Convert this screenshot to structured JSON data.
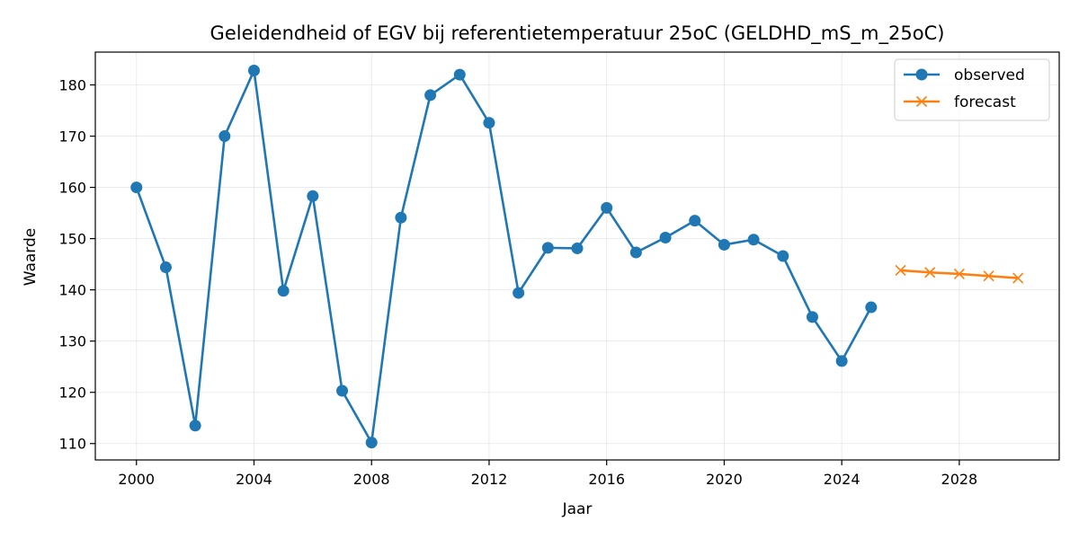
{
  "chart_data": {
    "type": "line",
    "title": "Geleidendheid of EGV bij referentietemperatuur 25oC (GELDHD_mS_m_25oC)",
    "xlabel": "Jaar",
    "ylabel": "Waarde",
    "xlim": [
      1998.6,
      2031.4
    ],
    "ylim": [
      106.8,
      186.4
    ],
    "xticks": [
      2000,
      2004,
      2008,
      2012,
      2016,
      2020,
      2024,
      2028
    ],
    "yticks": [
      110,
      120,
      130,
      140,
      150,
      160,
      170,
      180
    ],
    "grid": true,
    "legend_position": "top-right",
    "series": [
      {
        "name": "observed",
        "color": "#1f77b4",
        "marker": "circle",
        "x": [
          2000,
          2001,
          2002,
          2003,
          2004,
          2005,
          2006,
          2007,
          2008,
          2009,
          2010,
          2011,
          2012,
          2013,
          2014,
          2015,
          2016,
          2017,
          2018,
          2019,
          2020,
          2021,
          2022,
          2023,
          2024,
          2025
        ],
        "values": [
          160.0,
          144.4,
          113.5,
          170.0,
          182.8,
          139.8,
          158.3,
          120.3,
          110.2,
          154.1,
          178.0,
          182.0,
          172.6,
          139.4,
          148.2,
          148.1,
          156.0,
          147.3,
          150.2,
          153.5,
          148.8,
          149.8,
          146.6,
          134.7,
          126.1,
          136.6
        ]
      },
      {
        "name": "forecast",
        "color": "#ff7f0e",
        "marker": "x",
        "x": [
          2026,
          2027,
          2028,
          2029,
          2030
        ],
        "values": [
          143.8,
          143.4,
          143.1,
          142.7,
          142.3
        ]
      }
    ]
  }
}
